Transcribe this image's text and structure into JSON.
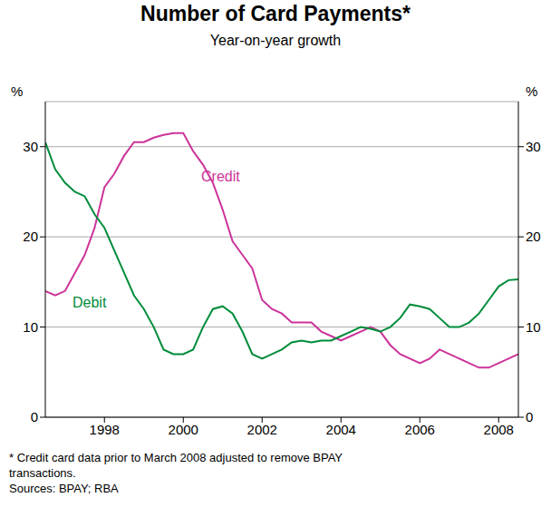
{
  "chart_data": {
    "type": "line",
    "title": "Number of Card Payments*",
    "subtitle": "Year-on-year growth",
    "y_unit": "%",
    "footnote": "*  Credit card data prior to March 2008 adjusted to remove BPAY transactions.",
    "sources": "Sources: BPAY; RBA",
    "x": [
      1996.5,
      1996.75,
      1997,
      1997.25,
      1997.5,
      1997.75,
      1998,
      1998.25,
      1998.5,
      1998.75,
      1999,
      1999.25,
      1999.5,
      1999.75,
      2000,
      2000.25,
      2000.5,
      2000.75,
      2001,
      2001.25,
      2001.5,
      2001.75,
      2002,
      2002.25,
      2002.5,
      2002.75,
      2003,
      2003.25,
      2003.5,
      2003.75,
      2004,
      2004.25,
      2004.5,
      2004.75,
      2005,
      2005.25,
      2005.5,
      2005.75,
      2006,
      2006.25,
      2006.5,
      2006.75,
      2007,
      2007.25,
      2007.5,
      2007.75,
      2008,
      2008.25,
      2008.5
    ],
    "series": [
      {
        "name": "Credit",
        "color": "#cc3399",
        "values": [
          14,
          13.5,
          14,
          16,
          18,
          21,
          25.5,
          27,
          29,
          30.5,
          30.5,
          31,
          31.3,
          31.5,
          31.5,
          29.5,
          28,
          26,
          23,
          19.5,
          18,
          16.5,
          13,
          12,
          11.5,
          10.5,
          10.5,
          10.5,
          9.5,
          9,
          8.5,
          9,
          9.5,
          10,
          9.5,
          8,
          7,
          6.5,
          6,
          6.5,
          7.5,
          7,
          6.5,
          6,
          5.5,
          5.5,
          6,
          6.5,
          7
        ]
      },
      {
        "name": "Debit",
        "color": "#008c3a",
        "values": [
          30.5,
          27.5,
          26,
          25,
          24.5,
          22.5,
          21,
          18.5,
          16,
          13.5,
          12,
          10,
          7.5,
          7,
          7,
          7.5,
          10,
          12,
          12.3,
          11.5,
          9.5,
          7,
          6.5,
          7,
          7.5,
          8.3,
          8.5,
          8.3,
          8.5,
          8.5,
          9,
          9.5,
          10,
          9.8,
          9.5,
          10,
          11,
          12.5,
          12.3,
          12,
          11,
          10,
          10,
          10.5,
          11.5,
          13,
          14.5,
          15.2,
          15.3
        ]
      }
    ],
    "xlim": [
      1996.5,
      2008.5
    ],
    "xticks": [
      1998,
      2000,
      2002,
      2004,
      2006,
      2008
    ],
    "ylim": [
      0,
      35
    ],
    "yticks": [
      0,
      10,
      20,
      30
    ],
    "y2lim": [
      0,
      35
    ],
    "y2ticks": [
      0,
      10,
      20,
      30
    ],
    "grid": true
  }
}
